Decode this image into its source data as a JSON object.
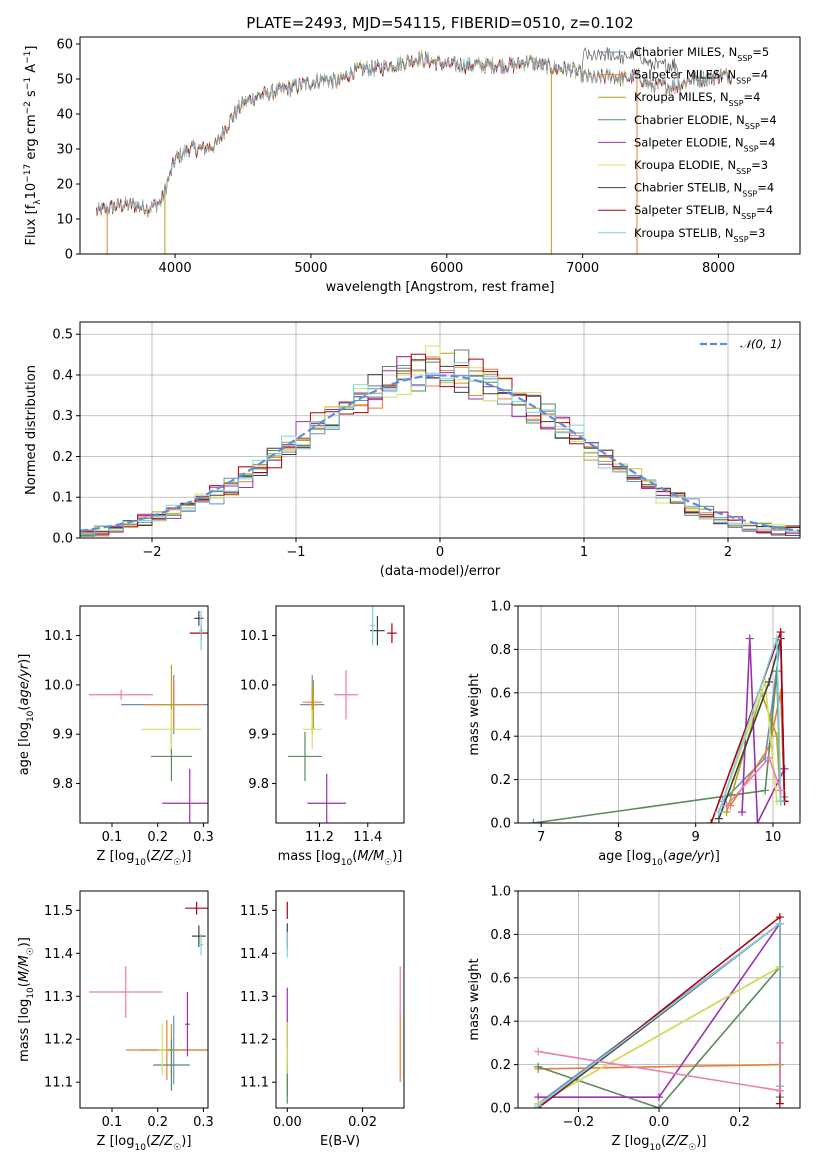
{
  "colors": {
    "series": [
      "#6c8ebf",
      "#e8803a",
      "#b8a020",
      "#5d8a5d",
      "#9b30b0",
      "#d4e060",
      "#404040",
      "#b00010",
      "#80d0e0"
    ],
    "extra": "#e880b0",
    "normal": "#5b8fd9",
    "grid": "#b0b0b0"
  },
  "chart_data": [
    {
      "type": "line",
      "title": "PLATE=2493, MJD=54115, FIBERID=0510, z=0.102",
      "xlabel": "wavelength [Angstrom, rest frame]",
      "ylabel": "Flux [f_λ 10^-17 erg cm^-2 s^-1 A^-1]",
      "xlim": [
        3300,
        8600
      ],
      "ylim": [
        0,
        62
      ],
      "xticks": [
        4000,
        5000,
        6000,
        7000,
        8000
      ],
      "yticks": [
        0,
        10,
        20,
        30,
        40,
        50,
        60
      ],
      "continuum": {
        "x": [
          3420,
          3500,
          3600,
          3700,
          3800,
          3900,
          4000,
          4100,
          4200,
          4300,
          4400,
          4500,
          4600,
          4700,
          4800,
          4900,
          5000,
          5100,
          5200,
          5300,
          5400,
          5500,
          5600,
          5700,
          5800,
          5900,
          6000,
          6100,
          6200,
          6300,
          6400,
          6500,
          6600,
          6700,
          6800,
          6900,
          7000,
          7100,
          7200,
          7300,
          7400,
          7500,
          7600,
          7700,
          7800,
          7900,
          8000,
          8100
        ],
        "y": [
          12,
          13,
          14,
          14,
          13,
          15,
          27,
          30,
          30,
          31,
          38,
          43,
          45,
          46,
          47,
          48,
          49,
          50,
          49,
          52,
          53,
          53,
          54,
          55,
          56,
          55,
          54,
          54,
          54,
          54,
          54,
          54,
          55,
          54,
          53,
          53,
          51,
          50,
          51,
          50,
          51,
          48,
          48,
          48,
          50,
          50,
          51,
          51
        ]
      },
      "legend": [
        {
          "label": "Chabrier MILES, N_SSP=5"
        },
        {
          "label": "Salpeter MILES, N_SSP=4"
        },
        {
          "label": "Kroupa MILES, N_SSP=4"
        },
        {
          "label": "Chabrier ELODIE, N_SSP=4"
        },
        {
          "label": "Salpeter ELODIE, N_SSP=4"
        },
        {
          "label": "Kroupa ELODIE, N_SSP=3"
        },
        {
          "label": "Chabrier STELIB, N_SSP=4"
        },
        {
          "label": "Salpeter STELIB, N_SSP=4"
        },
        {
          "label": "Kroupa STELIB, N_SSP=3"
        }
      ],
      "legend_placement": "top-right",
      "grid": false
    },
    {
      "type": "histogram",
      "xlabel": "(data-model)/error",
      "ylabel": "Normed distribution",
      "xlim": [
        -2.5,
        2.5
      ],
      "ylim": [
        0,
        0.53
      ],
      "xticks": [
        -2,
        -1,
        0,
        1,
        2
      ],
      "yticks": [
        0.0,
        0.1,
        0.2,
        0.3,
        0.4,
        0.5
      ],
      "bin_width": 0.1,
      "reference_curve": {
        "name": "N(0,1)",
        "type": "normal",
        "mean": 0,
        "sd": 1
      },
      "legend_placement": "top-right",
      "grid": true
    },
    {
      "type": "scatter",
      "xlabel": "Z [log10(Z/Z☉)]",
      "ylabel": "age [log10(age/yr)]",
      "xlim": [
        0.03,
        0.31
      ],
      "ylim": [
        9.72,
        10.16
      ],
      "xticks": [
        0.1,
        0.2,
        0.3
      ],
      "yticks": [
        9.8,
        9.9,
        10.0,
        10.1
      ],
      "points": [
        {
          "x": 0.235,
          "y": 9.96,
          "xerr": 0.115,
          "yerr": 0.06,
          "c": 0
        },
        {
          "x": 0.235,
          "y": 9.96,
          "xerr": 0.065,
          "yerr": 0.05,
          "c": 1
        },
        {
          "x": 0.23,
          "y": 9.96,
          "xerr": 0.03,
          "yerr": 0.08,
          "c": 2
        },
        {
          "x": 0.23,
          "y": 9.855,
          "xerr": 0.045,
          "yerr": 0.05,
          "c": 3
        },
        {
          "x": 0.27,
          "y": 9.76,
          "xerr": 0.06,
          "yerr": 0.07,
          "c": 4
        },
        {
          "x": 0.23,
          "y": 9.91,
          "xerr": 0.065,
          "yerr": 0.04,
          "c": 5
        },
        {
          "x": 0.29,
          "y": 10.135,
          "xerr": 0.01,
          "yerr": 0.015,
          "c": 6
        },
        {
          "x": 0.295,
          "y": 10.105,
          "xerr": 0.025,
          "yerr": 0.015,
          "c": 7
        },
        {
          "x": 0.295,
          "y": 10.11,
          "xerr": 0.005,
          "yerr": 0.04,
          "c": 8
        },
        {
          "x": 0.12,
          "y": 9.98,
          "xerr": 0.07,
          "yerr": 0.01,
          "c": "extra"
        }
      ]
    },
    {
      "type": "scatter",
      "xlabel": "mass [log10(M/M☉)]",
      "ylabel": "",
      "xlim": [
        11.02,
        11.55
      ],
      "ylim": [
        9.72,
        10.16
      ],
      "xticks": [
        11.2,
        11.4
      ],
      "yticks": [
        9.8,
        9.9,
        10.0,
        10.1
      ],
      "points": [
        {
          "x": 11.17,
          "y": 9.96,
          "xerr": 0.05,
          "yerr": 0.06,
          "c": 0
        },
        {
          "x": 11.17,
          "y": 9.965,
          "xerr": 0.04,
          "yerr": 0.03,
          "c": 1
        },
        {
          "x": 11.175,
          "y": 9.96,
          "xerr": 0.02,
          "yerr": 0.05,
          "c": 2
        },
        {
          "x": 11.14,
          "y": 9.855,
          "xerr": 0.07,
          "yerr": 0.05,
          "c": 3
        },
        {
          "x": 11.23,
          "y": 9.76,
          "xerr": 0.08,
          "yerr": 0.06,
          "c": 4
        },
        {
          "x": 11.17,
          "y": 9.91,
          "xerr": 0.04,
          "yerr": 0.04,
          "c": 5
        },
        {
          "x": 11.44,
          "y": 10.11,
          "xerr": 0.03,
          "yerr": 0.03,
          "c": 6
        },
        {
          "x": 11.5,
          "y": 10.105,
          "xerr": 0.02,
          "yerr": 0.02,
          "c": 7
        },
        {
          "x": 11.42,
          "y": 10.12,
          "xerr": 0.01,
          "yerr": 0.04,
          "c": 8
        },
        {
          "x": 11.31,
          "y": 9.98,
          "xerr": 0.05,
          "yerr": 0.05,
          "c": "extra"
        }
      ]
    },
    {
      "type": "line",
      "xlabel": "age [log10(age/yr)]",
      "ylabel": "mass weight",
      "xlim": [
        6.7,
        10.35
      ],
      "ylim": [
        0,
        1.0
      ],
      "xticks": [
        7,
        8,
        9,
        10
      ],
      "yticks": [
        0.0,
        0.2,
        0.4,
        0.6,
        0.8,
        1.0
      ],
      "grid": true,
      "series": [
        {
          "c": 0,
          "x": [
            9.35,
            9.9,
            10.1,
            10.15
          ],
          "y": [
            0.1,
            0.3,
            0.85,
            0.12
          ]
        },
        {
          "c": 1,
          "x": [
            9.45,
            9.95,
            10.1,
            10.15
          ],
          "y": [
            0.08,
            0.35,
            0.6,
            0.1
          ]
        },
        {
          "c": 2,
          "x": [
            9.4,
            9.85,
            10.05,
            10.1
          ],
          "y": [
            0.05,
            0.6,
            0.4,
            0.1
          ]
        },
        {
          "c": 3,
          "x": [
            6.9,
            9.9,
            10.05,
            10.1
          ],
          "y": [
            0.0,
            0.15,
            0.7,
            0.1
          ]
        },
        {
          "c": 4,
          "x": [
            9.6,
            9.7,
            9.8,
            10.15
          ],
          "y": [
            0.05,
            0.85,
            0.0,
            0.25
          ]
        },
        {
          "c": 5,
          "x": [
            9.3,
            9.9,
            10.05
          ],
          "y": [
            0.05,
            0.65,
            0.1
          ]
        },
        {
          "c": 6,
          "x": [
            9.3,
            9.95,
            10.1,
            10.15
          ],
          "y": [
            0.02,
            0.65,
            0.85,
            0.1
          ]
        },
        {
          "c": 7,
          "x": [
            9.2,
            10.1,
            10.15
          ],
          "y": [
            0.0,
            0.88,
            0.1
          ]
        },
        {
          "c": 8,
          "x": [
            9.3,
            10.05,
            10.1
          ],
          "y": [
            0.05,
            0.85,
            0.1
          ]
        },
        {
          "c": "extra",
          "x": [
            9.4,
            9.95,
            10.1
          ],
          "y": [
            0.08,
            0.3,
            0.15
          ]
        }
      ]
    },
    {
      "type": "scatter",
      "xlabel": "Z [log10(Z/Z☉)]",
      "ylabel": "mass [log10(M/M☉)]",
      "xlim": [
        0.03,
        0.31
      ],
      "ylim": [
        11.04,
        11.545
      ],
      "xticks": [
        0.1,
        0.2,
        0.3
      ],
      "yticks": [
        11.1,
        11.2,
        11.3,
        11.4,
        11.5
      ],
      "points": [
        {
          "x": 0.235,
          "y": 11.175,
          "xerr": 0.075,
          "yerr": 0.08,
          "c": 0
        },
        {
          "x": 0.22,
          "y": 11.175,
          "xerr": 0.09,
          "yerr": 0.07,
          "c": 1
        },
        {
          "x": 0.23,
          "y": 11.175,
          "xerr": 0.03,
          "yerr": 0.06,
          "c": 2
        },
        {
          "x": 0.23,
          "y": 11.14,
          "xerr": 0.04,
          "yerr": 0.06,
          "c": 3
        },
        {
          "x": 0.265,
          "y": 11.235,
          "xerr": 0.005,
          "yerr": 0.075,
          "c": 4
        },
        {
          "x": 0.21,
          "y": 11.175,
          "xerr": 0.01,
          "yerr": 0.06,
          "c": 5
        },
        {
          "x": 0.29,
          "y": 11.44,
          "xerr": 0.015,
          "yerr": 0.025,
          "c": 6
        },
        {
          "x": 0.285,
          "y": 11.505,
          "xerr": 0.025,
          "yerr": 0.015,
          "c": 7
        },
        {
          "x": 0.295,
          "y": 11.42,
          "xerr": 0.005,
          "yerr": 0.025,
          "c": 8
        },
        {
          "x": 0.13,
          "y": 11.31,
          "xerr": 0.08,
          "yerr": 0.06,
          "c": "extra"
        }
      ]
    },
    {
      "type": "scatter",
      "xlabel": "E(B-V)",
      "ylabel": "",
      "xlim": [
        -0.003,
        0.031
      ],
      "ylim": [
        11.04,
        11.545
      ],
      "xticks": [
        0.0,
        0.02
      ],
      "xticklabels": [
        "0.00",
        "0.02"
      ],
      "yticks": [
        11.1,
        11.2,
        11.3,
        11.4,
        11.5
      ],
      "points": [
        {
          "x": 0.0,
          "y": 11.15,
          "xerr": 0.0,
          "yerr": 0.08,
          "c": 0
        },
        {
          "x": 0.03,
          "y": 11.18,
          "xerr": 0.0,
          "yerr": 0.08,
          "c": 1
        },
        {
          "x": 0.0,
          "y": 11.18,
          "xerr": 0.0,
          "yerr": 0.06,
          "c": 2
        },
        {
          "x": 0.0,
          "y": 11.1,
          "xerr": 0.0,
          "yerr": 0.05,
          "c": 3
        },
        {
          "x": 0.0,
          "y": 11.25,
          "xerr": 0.0,
          "yerr": 0.07,
          "c": 4
        },
        {
          "x": 0.0,
          "y": 11.18,
          "xerr": 0.0,
          "yerr": 0.06,
          "c": 5
        },
        {
          "x": 0.0,
          "y": 11.44,
          "xerr": 0.0,
          "yerr": 0.03,
          "c": 6
        },
        {
          "x": 0.0,
          "y": 11.5,
          "xerr": 0.0,
          "yerr": 0.02,
          "c": 7
        },
        {
          "x": 0.0,
          "y": 11.42,
          "xerr": 0.0,
          "yerr": 0.03,
          "c": 8
        },
        {
          "x": 0.03,
          "y": 11.31,
          "xerr": 0.0,
          "yerr": 0.06,
          "c": "extra"
        }
      ]
    },
    {
      "type": "line",
      "xlabel": "Z [log10(Z/Z☉)]",
      "ylabel": "mass weight",
      "xlim": [
        -0.35,
        0.35
      ],
      "ylim": [
        0,
        1.0
      ],
      "xticks": [
        -0.2,
        0.0,
        0.2
      ],
      "xticklabels": [
        "−0.2",
        "0.0",
        "0.2"
      ],
      "yticks": [
        0.0,
        0.2,
        0.4,
        0.6,
        0.8,
        1.0
      ],
      "grid": true,
      "series": [
        {
          "c": 0,
          "x": [
            -0.3,
            0.3,
            0.3
          ],
          "y": [
            0.02,
            0.85,
            0.08
          ]
        },
        {
          "c": 1,
          "x": [
            -0.3,
            0.3
          ],
          "y": [
            0.18,
            0.2
          ]
        },
        {
          "c": 2,
          "x": [
            -0.3,
            0.3,
            0.3
          ],
          "y": [
            0.02,
            0.65,
            0.2
          ]
        },
        {
          "c": 3,
          "x": [
            -0.3,
            0.0,
            0.3,
            0.3
          ],
          "y": [
            0.19,
            0.0,
            0.65,
            0.05
          ]
        },
        {
          "c": 4,
          "x": [
            -0.3,
            0.0,
            0.3
          ],
          "y": [
            0.05,
            0.05,
            0.85
          ]
        },
        {
          "c": 5,
          "x": [
            -0.3,
            0.3
          ],
          "y": [
            0.02,
            0.65
          ]
        },
        {
          "c": 6,
          "x": [
            -0.3,
            0.3,
            0.3
          ],
          "y": [
            0.0,
            0.85,
            0.1
          ]
        },
        {
          "c": 7,
          "x": [
            -0.3,
            0.3,
            0.3
          ],
          "y": [
            0.0,
            0.88,
            0.02
          ]
        },
        {
          "c": 8,
          "x": [
            -0.3,
            0.3,
            0.3
          ],
          "y": [
            0.01,
            0.85,
            0.1
          ]
        },
        {
          "c": "extra",
          "x": [
            -0.3,
            0.3,
            0.3
          ],
          "y": [
            0.26,
            0.08,
            0.3
          ]
        }
      ]
    }
  ]
}
